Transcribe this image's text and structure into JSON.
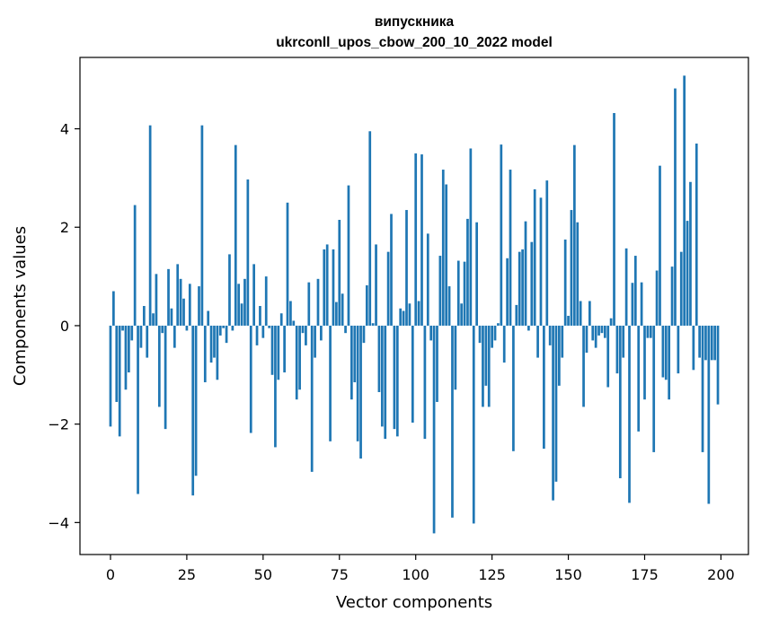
{
  "chart_data": {
    "type": "bar",
    "title_line1": "випускника",
    "title_line2": "ukrconll_upos_cbow_200_10_2022 model",
    "xlabel": "Vector components",
    "ylabel": "Components values",
    "xlim": [
      -10,
      209
    ],
    "ylim": [
      -4.65,
      5.45
    ],
    "xticks": [
      0,
      25,
      50,
      75,
      100,
      125,
      150,
      175,
      200
    ],
    "yticks": [
      -4,
      -2,
      0,
      2,
      4
    ],
    "ytick_labels": [
      "−4",
      "−2",
      "0",
      "2",
      "4"
    ],
    "grid": false,
    "legend": "none",
    "bar_color": "#1f77b4",
    "x": [
      0,
      1,
      2,
      3,
      4,
      5,
      6,
      7,
      8,
      9,
      10,
      11,
      12,
      13,
      14,
      15,
      16,
      17,
      18,
      19,
      20,
      21,
      22,
      23,
      24,
      25,
      26,
      27,
      28,
      29,
      30,
      31,
      32,
      33,
      34,
      35,
      36,
      37,
      38,
      39,
      40,
      41,
      42,
      43,
      44,
      45,
      46,
      47,
      48,
      49,
      50,
      51,
      52,
      53,
      54,
      55,
      56,
      57,
      58,
      59,
      60,
      61,
      62,
      63,
      64,
      65,
      66,
      67,
      68,
      69,
      70,
      71,
      72,
      73,
      74,
      75,
      76,
      77,
      78,
      79,
      80,
      81,
      82,
      83,
      84,
      85,
      86,
      87,
      88,
      89,
      90,
      91,
      92,
      93,
      94,
      95,
      96,
      97,
      98,
      99,
      100,
      101,
      102,
      103,
      104,
      105,
      106,
      107,
      108,
      109,
      110,
      111,
      112,
      113,
      114,
      115,
      116,
      117,
      118,
      119,
      120,
      121,
      122,
      123,
      124,
      125,
      126,
      127,
      128,
      129,
      130,
      131,
      132,
      133,
      134,
      135,
      136,
      137,
      138,
      139,
      140,
      141,
      142,
      143,
      144,
      145,
      146,
      147,
      148,
      149,
      150,
      151,
      152,
      153,
      154,
      155,
      156,
      157,
      158,
      159,
      160,
      161,
      162,
      163,
      164,
      165,
      166,
      167,
      168,
      169,
      170,
      171,
      172,
      173,
      174,
      175,
      176,
      177,
      178,
      179,
      180,
      181,
      182,
      183,
      184,
      185,
      186,
      187,
      188,
      189,
      190,
      191,
      192,
      193,
      194,
      195,
      196,
      197,
      198,
      199
    ],
    "values": [
      -2.05,
      0.7,
      -1.55,
      -2.25,
      -0.1,
      -1.3,
      -0.95,
      -0.3,
      2.45,
      -3.42,
      -0.45,
      0.4,
      -0.65,
      4.07,
      0.25,
      1.05,
      -1.65,
      -0.15,
      -2.1,
      1.15,
      0.35,
      -0.45,
      1.25,
      0.95,
      0.55,
      -0.1,
      0.85,
      -3.45,
      -3.05,
      0.8,
      4.07,
      -1.15,
      0.3,
      -0.75,
      -0.65,
      -1.1,
      -0.2,
      -0.05,
      -0.35,
      1.45,
      -0.1,
      3.67,
      0.85,
      0.45,
      0.95,
      2.97,
      -2.18,
      1.25,
      -0.4,
      0.4,
      -0.25,
      1.0,
      -0.05,
      -1.0,
      -2.47,
      -1.1,
      0.25,
      -0.95,
      2.5,
      0.5,
      0.1,
      -1.5,
      -1.3,
      -0.15,
      -0.4,
      0.88,
      -2.97,
      -0.65,
      0.95,
      -0.3,
      1.55,
      1.65,
      -2.35,
      1.55,
      0.48,
      2.15,
      0.65,
      -0.15,
      2.85,
      -1.5,
      -1.15,
      -2.35,
      -2.7,
      -0.35,
      0.82,
      3.95,
      0.05,
      1.65,
      -1.35,
      -2.05,
      -2.3,
      1.5,
      2.27,
      -2.1,
      -2.25,
      0.35,
      0.3,
      2.35,
      0.45,
      -1.97,
      3.5,
      0.5,
      3.48,
      -2.3,
      1.87,
      -0.3,
      -4.22,
      -1.55,
      1.42,
      3.17,
      2.87,
      0.8,
      -3.9,
      -1.3,
      1.32,
      0.45,
      1.3,
      2.17,
      3.6,
      -4.02,
      2.1,
      -0.35,
      -1.65,
      -1.22,
      -1.65,
      -0.45,
      -0.3,
      0.05,
      3.68,
      -0.75,
      1.37,
      3.17,
      -2.55,
      0.42,
      1.5,
      1.55,
      2.12,
      -0.1,
      1.7,
      2.77,
      -0.65,
      2.6,
      -2.5,
      2.95,
      -0.4,
      -3.55,
      -3.17,
      -1.22,
      -0.65,
      1.75,
      0.2,
      2.35,
      3.67,
      2.1,
      0.5,
      -1.65,
      -0.55,
      0.5,
      -0.3,
      -0.45,
      -0.2,
      -0.15,
      -0.25,
      -1.25,
      0.15,
      4.32,
      -0.97,
      -3.1,
      -0.65,
      1.57,
      -3.6,
      0.87,
      1.42,
      -2.15,
      0.88,
      -1.5,
      -0.25,
      -0.25,
      -2.57,
      1.12,
      3.25,
      -1.05,
      -1.1,
      -1.5,
      1.2,
      4.82,
      -0.97,
      1.5,
      5.08,
      2.13,
      2.92,
      -0.9,
      3.7,
      -0.65,
      -2.57,
      -0.7,
      -3.62,
      -0.7,
      -0.7,
      -1.6
    ]
  }
}
